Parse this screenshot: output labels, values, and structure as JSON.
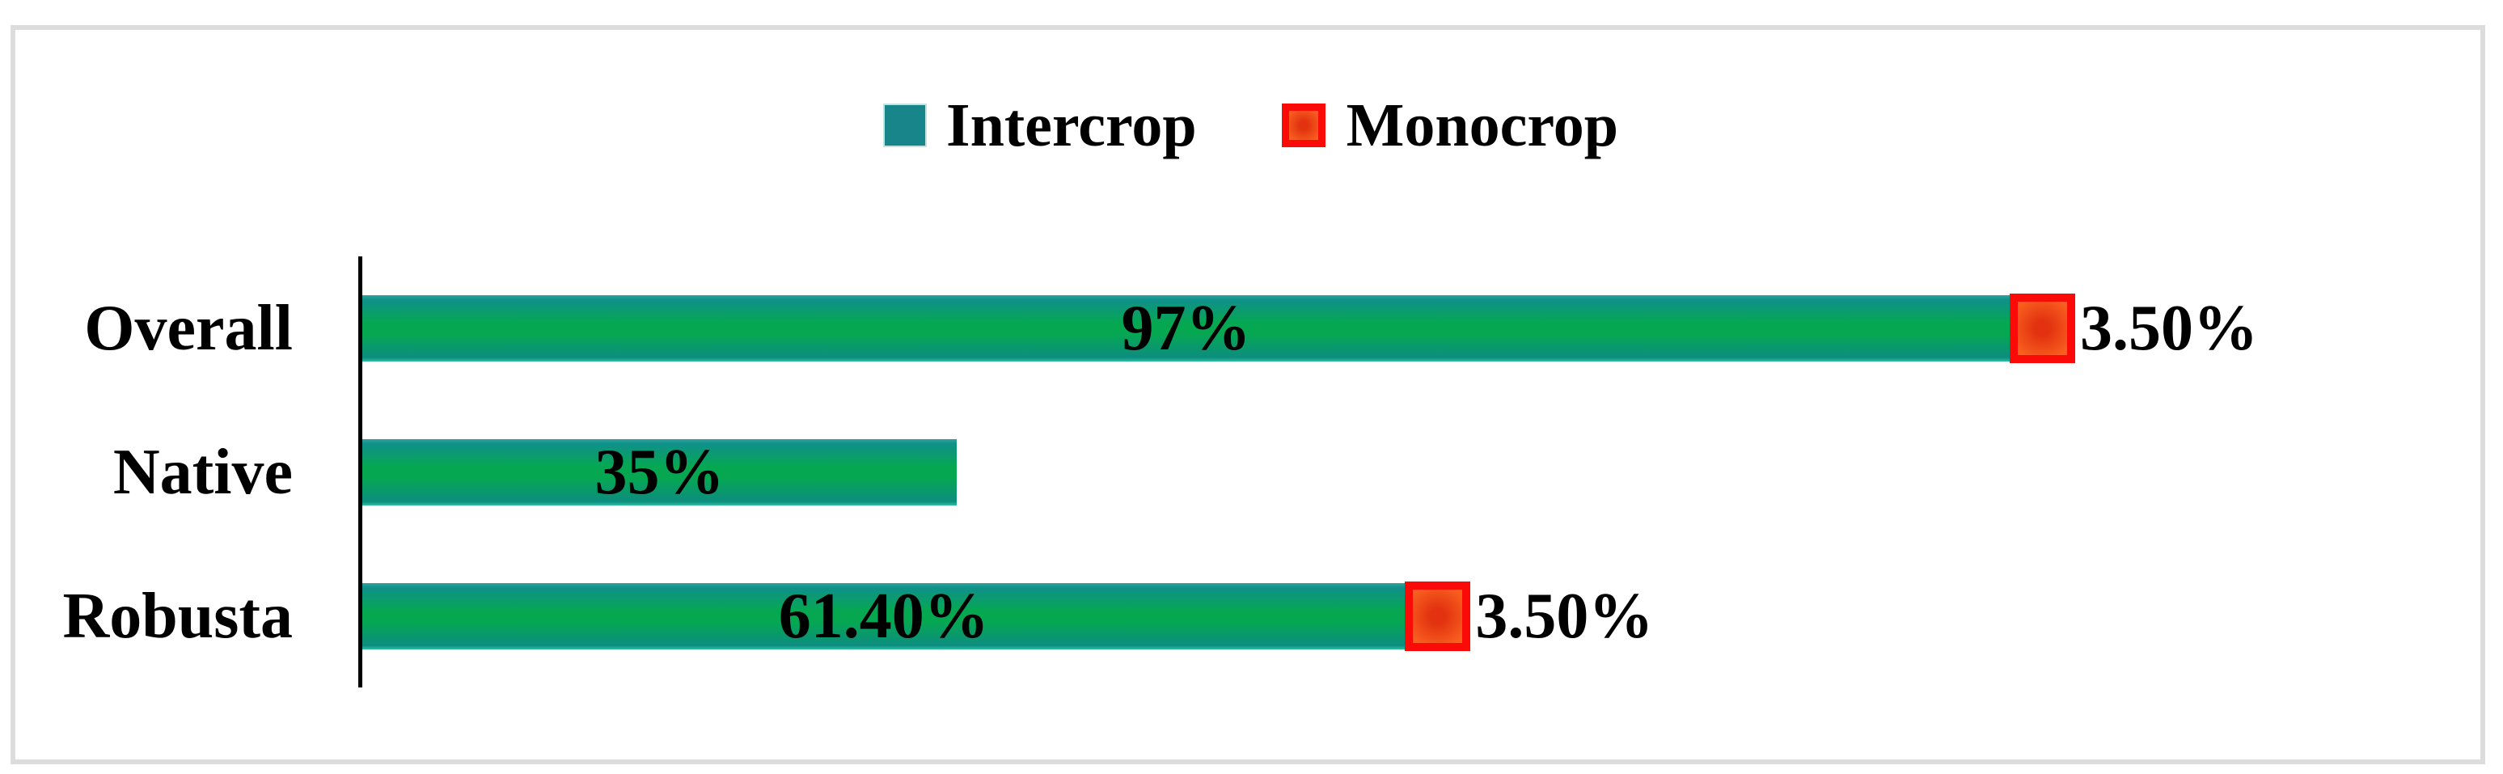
{
  "frame": {
    "background": "#ffffff",
    "border_color": "#dcdcdc"
  },
  "legend": {
    "position": "top-center",
    "items": [
      {
        "label": "Intercrop",
        "swatch": "teal-square-icon"
      },
      {
        "label": "Monocrop",
        "swatch": "red-bordered-square-icon"
      }
    ]
  },
  "chart_data": {
    "type": "bar",
    "orientation": "horizontal",
    "stacked": true,
    "title": "",
    "xlabel": "",
    "ylabel": "",
    "categories": [
      "Overall",
      "Native",
      "Robusta"
    ],
    "series": [
      {
        "name": "Intercrop",
        "values": [
          97,
          35,
          61.4
        ],
        "data_labels": [
          "97%",
          "35%",
          "61.40%"
        ],
        "data_label_position": "center"
      },
      {
        "name": "Monocrop",
        "values": [
          3.5,
          null,
          3.5
        ],
        "data_labels": [
          "3.50%",
          null,
          "3.50%"
        ],
        "data_label_position": "outside-end"
      }
    ],
    "xlim": [
      0,
      100
    ],
    "value_unit": "%",
    "grid": false,
    "x_axis_visible": false,
    "y_axis_line_visible": true,
    "legend_position": "top-center"
  },
  "colors": {
    "frame_border": "#dcdcdc",
    "axis": "#000000",
    "text": "#000000",
    "intercrop_swatch": "#17858a",
    "intercrop_bar_edge": "#0f908a",
    "intercrop_bar_center": "#05a851",
    "monocrop_border": "#fb0b07",
    "monocrop_fill_center": "#e23210",
    "monocrop_fill_edge": "#f9601f"
  }
}
